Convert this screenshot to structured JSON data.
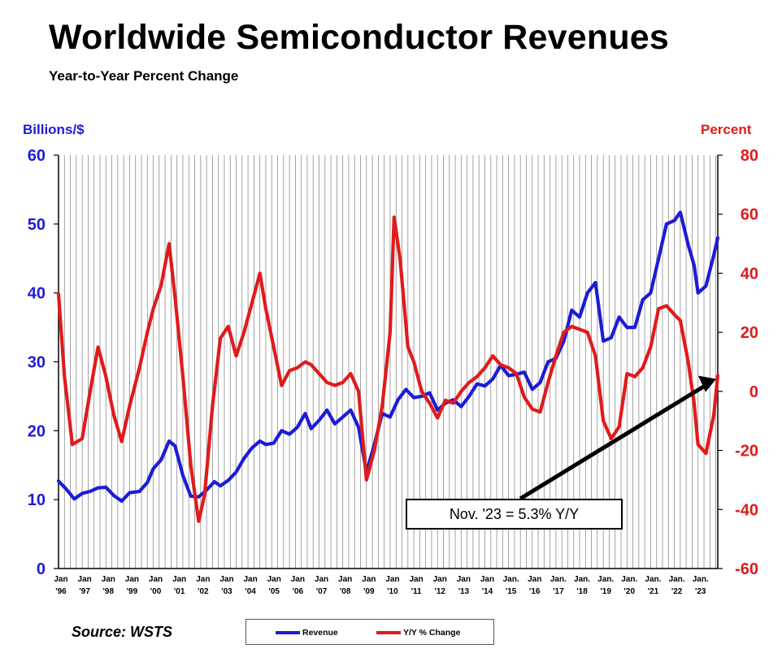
{
  "chart_data": {
    "type": "line",
    "title": "Worldwide Semiconductor Revenues",
    "subtitle": "Year-to-Year Percent Change",
    "y_left_label": "Billions/$",
    "y_right_label": "Percent",
    "y_left_range": [
      0,
      60
    ],
    "y_right_range": [
      -60,
      80
    ],
    "y_left_ticks": [
      "0",
      "10",
      "20",
      "30",
      "40",
      "50",
      "60"
    ],
    "y_right_ticks": [
      "-60",
      "-40",
      "-20",
      "0",
      "20",
      "40",
      "60",
      "80"
    ],
    "x_ticks": [
      {
        "month": "Jan",
        "year": "'96"
      },
      {
        "month": "Jan",
        "year": "'97"
      },
      {
        "month": "Jan",
        "year": "'98"
      },
      {
        "month": "Jan",
        "year": "'99"
      },
      {
        "month": "Jan",
        "year": "'00"
      },
      {
        "month": "Jan",
        "year": "'01"
      },
      {
        "month": "Jan",
        "year": "'02"
      },
      {
        "month": "Jan",
        "year": "'03"
      },
      {
        "month": "Jan",
        "year": "'04"
      },
      {
        "month": "Jan",
        "year": "'05"
      },
      {
        "month": "Jan",
        "year": "'06"
      },
      {
        "month": "Jan",
        "year": "'07"
      },
      {
        "month": "Jan",
        "year": "'08"
      },
      {
        "month": "Jan",
        "year": "'09"
      },
      {
        "month": "Jan",
        "year": "'10"
      },
      {
        "month": "Jan",
        "year": "'11"
      },
      {
        "month": "Jan",
        "year": "'12"
      },
      {
        "month": "Jan",
        "year": "'13"
      },
      {
        "month": "Jan",
        "year": "'14"
      },
      {
        "month": "Jan.",
        "year": "'15"
      },
      {
        "month": "Jan",
        "year": "'16"
      },
      {
        "month": "Jan.",
        "year": "'17"
      },
      {
        "month": "Jan.",
        "year": "'18"
      },
      {
        "month": "Jan.",
        "year": "'19"
      },
      {
        "month": "Jan.",
        "year": "'20"
      },
      {
        "month": "Jan.",
        "year": "'21"
      },
      {
        "month": "Jan.",
        "year": "'22"
      },
      {
        "month": "Jan.",
        "year": "'23"
      }
    ],
    "grid": "vertical",
    "legend_position": "bottom",
    "series": [
      {
        "name": "Revenue",
        "axis": "left",
        "color": "#1c1cd6",
        "points": [
          [
            "1996-01",
            12.7
          ],
          [
            "1996-05",
            11.5
          ],
          [
            "1996-09",
            10.1
          ],
          [
            "1997-01",
            10.9
          ],
          [
            "1997-05",
            11.2
          ],
          [
            "1997-09",
            11.7
          ],
          [
            "1998-01",
            11.8
          ],
          [
            "1998-05",
            10.6
          ],
          [
            "1998-09",
            9.8
          ],
          [
            "1999-01",
            11.0
          ],
          [
            "1999-06",
            11.2
          ],
          [
            "1999-10",
            12.5
          ],
          [
            "2000-01",
            14.5
          ],
          [
            "2000-05",
            15.8
          ],
          [
            "2000-09",
            18.5
          ],
          [
            "2000-12",
            17.8
          ],
          [
            "2001-04",
            13.5
          ],
          [
            "2001-08",
            10.5
          ],
          [
            "2001-12",
            10.4
          ],
          [
            "2002-04",
            11.4
          ],
          [
            "2002-08",
            12.6
          ],
          [
            "2002-11",
            12.0
          ],
          [
            "2003-03",
            12.8
          ],
          [
            "2003-07",
            14.0
          ],
          [
            "2003-11",
            16.0
          ],
          [
            "2004-03",
            17.5
          ],
          [
            "2004-07",
            18.5
          ],
          [
            "2004-10",
            18.0
          ],
          [
            "2005-02",
            18.2
          ],
          [
            "2005-06",
            20.0
          ],
          [
            "2005-10",
            19.5
          ],
          [
            "2006-02",
            20.5
          ],
          [
            "2006-06",
            22.5
          ],
          [
            "2006-09",
            20.3
          ],
          [
            "2007-01",
            21.5
          ],
          [
            "2007-05",
            23.0
          ],
          [
            "2007-09",
            21.0
          ],
          [
            "2008-01",
            22.0
          ],
          [
            "2008-05",
            23.0
          ],
          [
            "2008-09",
            20.5
          ],
          [
            "2009-01",
            14.0
          ],
          [
            "2009-05",
            18.0
          ],
          [
            "2009-09",
            22.5
          ],
          [
            "2010-01",
            22.0
          ],
          [
            "2010-05",
            24.5
          ],
          [
            "2010-09",
            26.0
          ],
          [
            "2011-01",
            24.8
          ],
          [
            "2011-05",
            25.0
          ],
          [
            "2011-09",
            25.5
          ],
          [
            "2012-01",
            23.0
          ],
          [
            "2012-05",
            24.0
          ],
          [
            "2012-09",
            24.5
          ],
          [
            "2013-01",
            23.5
          ],
          [
            "2013-05",
            25.0
          ],
          [
            "2013-09",
            26.8
          ],
          [
            "2014-01",
            26.5
          ],
          [
            "2014-05",
            27.5
          ],
          [
            "2014-09",
            29.5
          ],
          [
            "2015-01",
            28.0
          ],
          [
            "2015-05",
            28.2
          ],
          [
            "2015-09",
            28.5
          ],
          [
            "2016-01",
            26.0
          ],
          [
            "2016-05",
            27.0
          ],
          [
            "2016-09",
            30.0
          ],
          [
            "2017-01",
            30.5
          ],
          [
            "2017-05",
            33.0
          ],
          [
            "2017-09",
            37.5
          ],
          [
            "2018-01",
            36.5
          ],
          [
            "2018-05",
            40.0
          ],
          [
            "2018-09",
            41.5
          ],
          [
            "2019-01",
            33.0
          ],
          [
            "2019-05",
            33.5
          ],
          [
            "2019-09",
            36.5
          ],
          [
            "2020-01",
            35.0
          ],
          [
            "2020-05",
            35.0
          ],
          [
            "2020-09",
            39.0
          ],
          [
            "2021-01",
            40.0
          ],
          [
            "2021-05",
            45.0
          ],
          [
            "2021-09",
            50.0
          ],
          [
            "2022-01",
            50.5
          ],
          [
            "2022-04",
            51.7
          ],
          [
            "2022-08",
            47.0
          ],
          [
            "2022-11",
            44.0
          ],
          [
            "2023-01",
            40.0
          ],
          [
            "2023-05",
            41.0
          ],
          [
            "2023-09",
            45.5
          ],
          [
            "2023-11",
            48.0
          ]
        ]
      },
      {
        "name": "Y/Y % Change",
        "axis": "right",
        "color": "#e01b1b",
        "points": [
          [
            "1996-01",
            33
          ],
          [
            "1996-04",
            5
          ],
          [
            "1996-08",
            -18
          ],
          [
            "1997-01",
            -16
          ],
          [
            "1997-05",
            0
          ],
          [
            "1997-09",
            15
          ],
          [
            "1998-01",
            5
          ],
          [
            "1998-05",
            -8
          ],
          [
            "1998-09",
            -17
          ],
          [
            "1999-01",
            -5
          ],
          [
            "1999-06",
            8
          ],
          [
            "1999-10",
            20
          ],
          [
            "2000-01",
            28
          ],
          [
            "2000-05",
            36
          ],
          [
            "2000-09",
            50
          ],
          [
            "2000-12",
            32
          ],
          [
            "2001-04",
            5
          ],
          [
            "2001-08",
            -25
          ],
          [
            "2001-12",
            -44
          ],
          [
            "2002-03",
            -35
          ],
          [
            "2002-07",
            -5
          ],
          [
            "2002-11",
            18
          ],
          [
            "2003-03",
            22
          ],
          [
            "2003-07",
            12
          ],
          [
            "2003-11",
            20
          ],
          [
            "2004-03",
            30
          ],
          [
            "2004-07",
            40
          ],
          [
            "2004-10",
            28
          ],
          [
            "2005-02",
            15
          ],
          [
            "2005-06",
            2
          ],
          [
            "2005-10",
            7
          ],
          [
            "2006-02",
            8
          ],
          [
            "2006-06",
            10
          ],
          [
            "2006-09",
            9
          ],
          [
            "2007-01",
            6
          ],
          [
            "2007-05",
            3
          ],
          [
            "2007-09",
            2
          ],
          [
            "2008-01",
            3
          ],
          [
            "2008-05",
            6
          ],
          [
            "2008-09",
            0
          ],
          [
            "2009-01",
            -30
          ],
          [
            "2009-05",
            -20
          ],
          [
            "2009-09",
            -5
          ],
          [
            "2010-01",
            20
          ],
          [
            "2010-03",
            59
          ],
          [
            "2010-06",
            45
          ],
          [
            "2010-10",
            15
          ],
          [
            "2011-01",
            10
          ],
          [
            "2011-05",
            0
          ],
          [
            "2011-09",
            -4
          ],
          [
            "2012-01",
            -9
          ],
          [
            "2012-05",
            -3
          ],
          [
            "2012-09",
            -4
          ],
          [
            "2013-01",
            0
          ],
          [
            "2013-05",
            3
          ],
          [
            "2013-09",
            5
          ],
          [
            "2014-01",
            8
          ],
          [
            "2014-05",
            12
          ],
          [
            "2014-09",
            9
          ],
          [
            "2015-01",
            8
          ],
          [
            "2015-05",
            6
          ],
          [
            "2015-09",
            -2
          ],
          [
            "2016-01",
            -6
          ],
          [
            "2016-05",
            -7
          ],
          [
            "2016-09",
            3
          ],
          [
            "2017-01",
            12
          ],
          [
            "2017-05",
            20
          ],
          [
            "2017-09",
            22
          ],
          [
            "2018-01",
            21
          ],
          [
            "2018-05",
            20
          ],
          [
            "2018-09",
            12
          ],
          [
            "2019-01",
            -10
          ],
          [
            "2019-05",
            -16
          ],
          [
            "2019-09",
            -12
          ],
          [
            "2020-01",
            6
          ],
          [
            "2020-05",
            5
          ],
          [
            "2020-09",
            8
          ],
          [
            "2021-01",
            15
          ],
          [
            "2021-05",
            28
          ],
          [
            "2021-09",
            29
          ],
          [
            "2022-01",
            26
          ],
          [
            "2022-04",
            24
          ],
          [
            "2022-08",
            10
          ],
          [
            "2022-11",
            -4
          ],
          [
            "2023-01",
            -18
          ],
          [
            "2023-05",
            -21
          ],
          [
            "2023-09",
            -8
          ],
          [
            "2023-11",
            5.3
          ]
        ]
      }
    ],
    "annotation": "Nov. '23 = 5.3% Y/Y"
  },
  "source": "Source: WSTS",
  "legend": {
    "revenue_label": "Revenue",
    "yoy_label": "Y/Y % Change"
  },
  "colors": {
    "revenue": "#1c1cd6",
    "yoy": "#e01b1b"
  }
}
